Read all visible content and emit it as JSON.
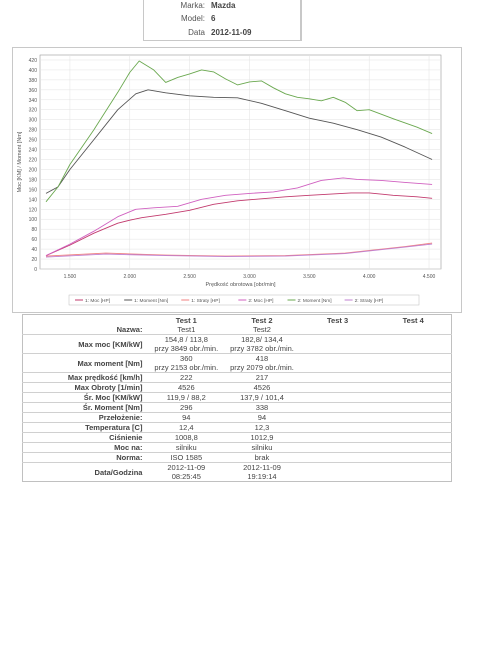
{
  "header": {
    "marka_label": "Marka:",
    "marka_value": "Mazda",
    "model_label": "Model:",
    "model_value": "6",
    "data_label": "Data",
    "data_value": "2012-11-09"
  },
  "chart_data": {
    "type": "line",
    "xlabel": "Prędkość obrotowa [obr/min]",
    "ylabel": "Moc [KM] / Moment [Nm]",
    "xlim": [
      1250,
      4600
    ],
    "ylim": [
      0,
      430
    ],
    "x_ticks": [
      1500,
      2000,
      2500,
      3000,
      3500,
      4000,
      4500
    ],
    "x_tick_labels": [
      "1.500",
      "2.000",
      "2.500",
      "3.000",
      "3.500",
      "4.000",
      "4.500"
    ],
    "y_ticks": [
      0,
      20,
      40,
      60,
      80,
      100,
      120,
      140,
      160,
      180,
      200,
      220,
      240,
      260,
      280,
      300,
      320,
      340,
      360,
      380,
      400,
      420
    ],
    "grid": true,
    "legend_position": "bottom",
    "series": [
      {
        "name": "1: Moc [HP]",
        "color": "#c23b6e",
        "x": [
          1300,
          1500,
          1700,
          1900,
          2000,
          2100,
          2300,
          2500,
          2700,
          2900,
          3100,
          3300,
          3500,
          3700,
          3849,
          4000,
          4200,
          4400,
          4526
        ],
        "y": [
          27,
          48,
          72,
          92,
          98,
          103,
          110,
          118,
          130,
          137,
          141,
          145,
          148,
          151,
          153,
          153,
          148,
          145,
          142
        ]
      },
      {
        "name": "1: Moment [Nm]",
        "color": "#555555",
        "x": [
          1300,
          1400,
          1500,
          1700,
          1900,
          2050,
          2153,
          2300,
          2500,
          2700,
          2900,
          3100,
          3300,
          3500,
          3700,
          3900,
          4100,
          4300,
          4526
        ],
        "y": [
          152,
          165,
          200,
          260,
          320,
          352,
          360,
          354,
          348,
          345,
          344,
          333,
          318,
          303,
          293,
          280,
          265,
          245,
          220
        ]
      },
      {
        "name": "1: Straty [HP]",
        "color": "#f08080",
        "x": [
          1300,
          1800,
          2300,
          2800,
          3300,
          3800,
          4300,
          4526
        ],
        "y": [
          26,
          32,
          28,
          26,
          27,
          32,
          45,
          52
        ]
      },
      {
        "name": "2: Moc [HP]",
        "color": "#d060c0",
        "x": [
          1300,
          1500,
          1700,
          1900,
          2050,
          2200,
          2400,
          2600,
          2800,
          3000,
          3200,
          3400,
          3600,
          3782,
          3900,
          4100,
          4300,
          4526
        ],
        "y": [
          27,
          50,
          76,
          105,
          120,
          123,
          126,
          140,
          148,
          152,
          155,
          163,
          178,
          183,
          180,
          178,
          174,
          170
        ]
      },
      {
        "name": "2: Moment [Nm]",
        "color": "#6aa84f",
        "x": [
          1300,
          1400,
          1500,
          1700,
          1900,
          2000,
          2079,
          2200,
          2300,
          2400,
          2500,
          2600,
          2700,
          2800,
          2900,
          3000,
          3100,
          3200,
          3300,
          3400,
          3500,
          3600,
          3700,
          3800,
          3900,
          4000,
          4200,
          4400,
          4526
        ],
        "y": [
          135,
          165,
          210,
          280,
          355,
          395,
          418,
          400,
          375,
          385,
          392,
          400,
          396,
          382,
          370,
          376,
          378,
          364,
          352,
          345,
          342,
          338,
          345,
          335,
          318,
          320,
          302,
          285,
          272
        ]
      },
      {
        "name": "2: Straty [HP]",
        "color": "#c080d0",
        "x": [
          1300,
          1800,
          2300,
          2800,
          3300,
          3800,
          4300,
          4526
        ],
        "y": [
          24,
          30,
          27,
          25,
          26,
          31,
          44,
          50
        ]
      }
    ]
  },
  "table": {
    "headers": [
      "Test 1",
      "Test 2",
      "Test 3",
      "Test 4"
    ],
    "rows": [
      {
        "label": "Nazwa:",
        "t1": "Test1",
        "t2": "Test2"
      },
      {
        "label": "Max moc [KM/kW]",
        "t1": "154,8 / 113,8",
        "t1b": "przy 3849 obr./min.",
        "t2": "182,8/ 134,4",
        "t2b": "przy 3782 obr./min."
      },
      {
        "label": "Max moment [Nm]",
        "t1": "360",
        "t1b": "przy 2153 obr./min.",
        "t2": "418",
        "t2b": "przy 2079 obr./min."
      },
      {
        "label": "Max prędkość [km/h]",
        "t1": "222",
        "t2": "217"
      },
      {
        "label": "Max Obroty [1/min]",
        "t1": "4526",
        "t2": "4526"
      },
      {
        "label": "Śr. Moc [KM/kW]",
        "t1": "119,9 / 88,2",
        "t2": "137,9 / 101,4"
      },
      {
        "label": "Śr. Moment [Nm]",
        "t1": "296",
        "t2": "338"
      },
      {
        "label": "Przełożenie:",
        "t1": "94",
        "t2": "94"
      },
      {
        "label": "Temperatura [C]",
        "t1": "12,4",
        "t2": "12,3"
      },
      {
        "label": "Ciśnienie",
        "t1": "1008,8",
        "t2": "1012,9"
      },
      {
        "label": "Moc na:",
        "t1": "silniku",
        "t2": "silniku"
      },
      {
        "label": "Norma:",
        "t1": "ISO 1585",
        "t2": "brak"
      },
      {
        "label": "Data/Godzina",
        "t1": "2012-11-09",
        "t1b": "08:25:45",
        "t2": "2012-11-09",
        "t2b": "19:19:14"
      }
    ]
  }
}
